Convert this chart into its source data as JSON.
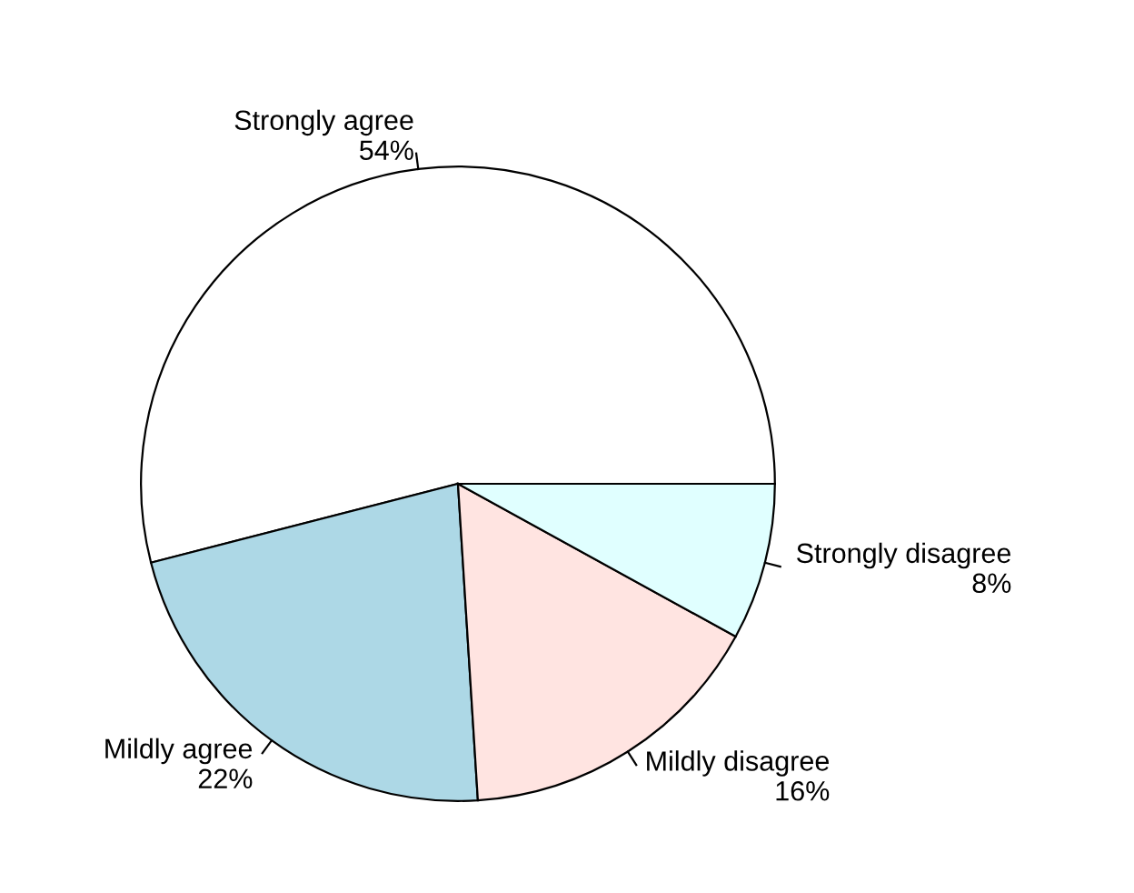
{
  "chart_data": {
    "type": "pie",
    "categories": [
      "Strongly agree",
      "Mildly agree",
      "Mildly disagree",
      "Strongly disagree"
    ],
    "values": [
      54,
      22,
      16,
      8
    ],
    "value_labels": [
      "54%",
      "22%",
      "16%",
      "8%"
    ],
    "colors": [
      "#ffffff",
      "#add8e6",
      "#ffe4e1",
      "#e0ffff"
    ]
  }
}
